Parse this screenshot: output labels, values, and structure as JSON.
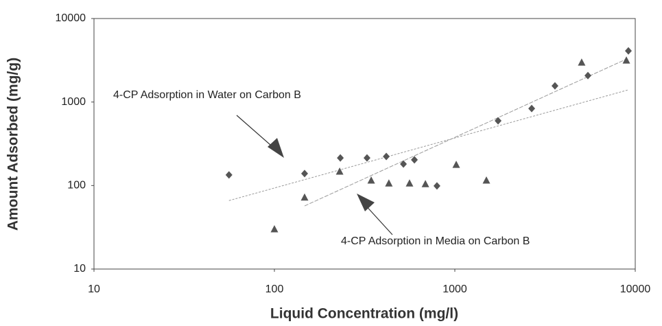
{
  "chart_data": {
    "type": "scatter",
    "xlabel": "Liquid Concentration (mg/l)",
    "ylabel": "Amount Adsorbed (mg/g)",
    "xscale": "log",
    "yscale": "log",
    "xlim": [
      10,
      10000
    ],
    "ylim": [
      10,
      10000
    ],
    "xticks": [
      10,
      100,
      1000,
      10000
    ],
    "yticks": [
      10,
      100,
      1000,
      10000
    ],
    "grid": false,
    "series": [
      {
        "marker": "diamond",
        "color": "#555555",
        "x": [
          56,
          147,
          232,
          326,
          417,
          519,
          597,
          796,
          1737,
          2667,
          3589,
          5466,
          9162
        ],
        "values": [
          134,
          139,
          214,
          214,
          223,
          181,
          203,
          99,
          596,
          837,
          1563,
          2075,
          4101
        ]
      },
      {
        "marker": "triangle",
        "color": "#555555",
        "x": [
          100,
          147,
          230,
          344,
          431,
          561,
          687,
          1018,
          1496,
          5047,
          8928
        ],
        "values": [
          30,
          72,
          147,
          115,
          106,
          106,
          104,
          177,
          115,
          2973,
          3148
        ]
      }
    ],
    "trendlines": [
      {
        "color": "#999999",
        "x": [
          56,
          9162
        ],
        "values": [
          66,
          1400
        ]
      },
      {
        "color": "#999999",
        "x": [
          147,
          8928
        ],
        "values": [
          57,
          3266
        ]
      }
    ],
    "annotations": [
      "4-CP Adsorption in Water on Carbon B",
      "4-CP Adsorption in Media on Carbon B"
    ]
  }
}
